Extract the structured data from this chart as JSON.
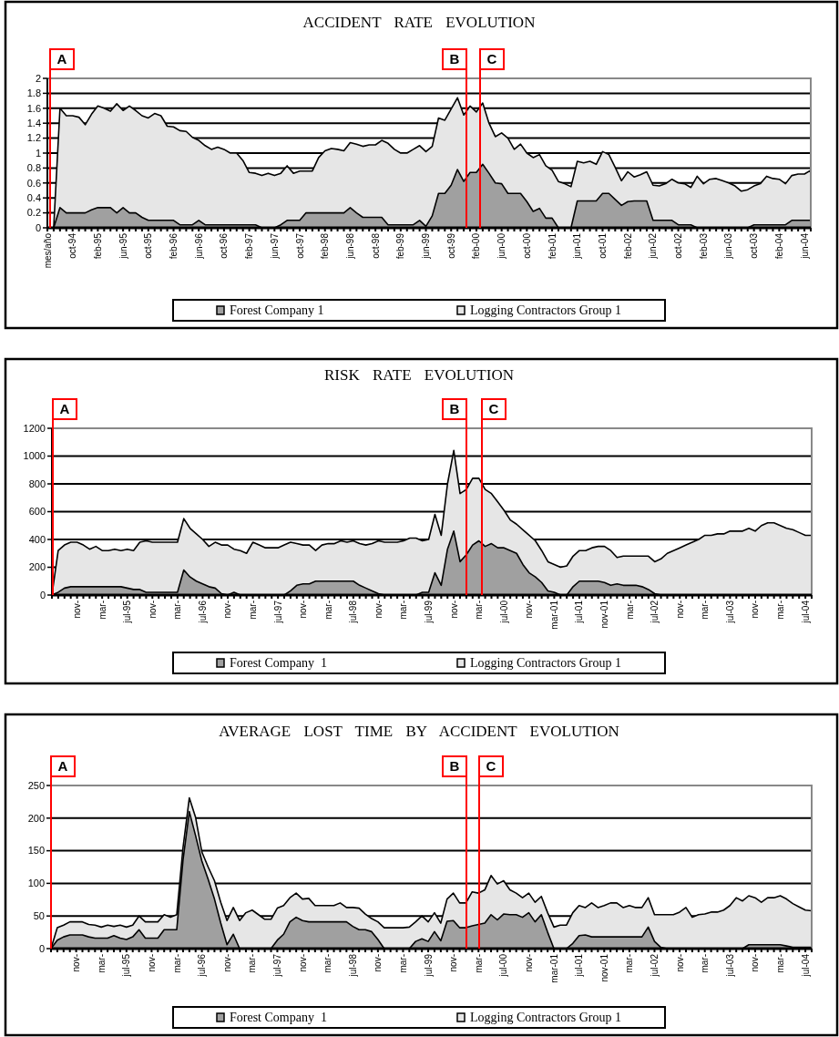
{
  "chart_data": [
    {
      "type": "area",
      "title": "ACCIDENT RATE EVOLUTION",
      "categories": [
        "mes/año",
        null,
        null,
        null,
        "oct-94",
        null,
        null,
        null,
        "feb-95",
        null,
        null,
        null,
        "jun-95",
        null,
        null,
        null,
        "oct-95",
        null,
        null,
        null,
        "feb-96",
        null,
        null,
        null,
        "jun-96",
        null,
        null,
        null,
        "oct-96",
        null,
        null,
        null,
        "feb-97",
        null,
        null,
        null,
        "jun-97",
        null,
        null,
        null,
        "oct-97",
        null,
        null,
        null,
        "feb-98",
        null,
        null,
        null,
        "jun-98",
        null,
        null,
        null,
        "oct-98",
        null,
        null,
        null,
        "feb-99",
        null,
        null,
        null,
        "jun-99",
        null,
        null,
        null,
        "oct-99",
        null,
        null,
        null,
        "feb-00",
        null,
        null,
        null,
        "jun-00",
        null,
        null,
        null,
        "oct-00",
        null,
        null,
        null,
        "feb-01",
        null,
        null,
        null,
        "jun-01",
        null,
        null,
        null,
        "oct-01",
        null,
        null,
        null,
        "feb-02",
        null,
        null,
        null,
        "jun-02",
        null,
        null,
        null,
        "oct-02",
        null,
        null,
        null,
        "feb-03",
        null,
        null,
        null,
        "jun-03",
        null,
        null,
        null,
        "oct-03",
        null,
        null,
        null,
        "feb-04",
        null,
        null,
        null,
        "jun-04",
        null
      ],
      "series": [
        {
          "name": "Forest Company 1",
          "color": "#a0a0a0",
          "values": [
            0,
            0,
            0.27,
            0.2,
            0.2,
            0.2,
            0.2,
            0.24,
            0.27,
            0.27,
            0.27,
            0.2,
            0.27,
            0.2,
            0.2,
            0.14,
            0.1,
            0.1,
            0.1,
            0.1,
            0.1,
            0.04,
            0.04,
            0.04,
            0.1,
            0.04,
            0.04,
            0.04,
            0.04,
            0.04,
            0.04,
            0.04,
            0.04,
            0.04,
            0,
            0,
            0,
            0.04,
            0.1,
            0.1,
            0.1,
            0.2,
            0.2,
            0.2,
            0.2,
            0.2,
            0.2,
            0.2,
            0.27,
            0.2,
            0.14,
            0.14,
            0.14,
            0.14,
            0.04,
            0.04,
            0.04,
            0.04,
            0.04,
            0.1,
            0.02,
            0.16,
            0.46,
            0.46,
            0.57,
            0.78,
            0.62,
            0.74,
            0.74,
            0.85,
            0.73,
            0.6,
            0.59,
            0.46,
            0.46,
            0.46,
            0.35,
            0.22,
            0.26,
            0.13,
            0.13,
            0,
            0,
            0,
            0.36,
            0.36,
            0.36,
            0.36,
            0.46,
            0.46,
            0.38,
            0.3,
            0.35,
            0.36,
            0.36,
            0.36,
            0.1,
            0.1,
            0.1,
            0.1,
            0.04,
            0.04,
            0.04,
            0,
            0,
            0,
            0,
            0,
            0,
            0,
            0,
            0,
            0.04,
            0.04,
            0.04,
            0.04,
            0.04,
            0.04,
            0.1,
            0.1,
            0.1,
            0.1
          ]
        },
        {
          "name": "Logging Contractors Group 1",
          "color": "#e6e6e6",
          "values": [
            0,
            0,
            1.6,
            1.5,
            1.5,
            1.48,
            1.38,
            1.52,
            1.63,
            1.6,
            1.56,
            1.66,
            1.57,
            1.63,
            1.57,
            1.5,
            1.47,
            1.53,
            1.5,
            1.36,
            1.35,
            1.3,
            1.29,
            1.21,
            1.17,
            1.1,
            1.05,
            1.08,
            1.05,
            1.0,
            1.0,
            0.9,
            0.74,
            0.73,
            0.7,
            0.73,
            0.7,
            0.73,
            0.83,
            0.73,
            0.76,
            0.76,
            0.76,
            0.94,
            1.03,
            1.06,
            1.05,
            1.03,
            1.14,
            1.12,
            1.09,
            1.11,
            1.11,
            1.17,
            1.13,
            1.05,
            1.0,
            1.0,
            1.05,
            1.1,
            1.02,
            1.09,
            1.47,
            1.44,
            1.59,
            1.74,
            1.51,
            1.63,
            1.55,
            1.67,
            1.4,
            1.22,
            1.27,
            1.2,
            1.05,
            1.12,
            1.0,
            0.94,
            0.98,
            0.83,
            0.77,
            0.62,
            0.59,
            0.55,
            0.89,
            0.87,
            0.89,
            0.85,
            1.02,
            0.98,
            0.81,
            0.63,
            0.75,
            0.68,
            0.71,
            0.75,
            0.57,
            0.56,
            0.59,
            0.65,
            0.6,
            0.59,
            0.54,
            0.69,
            0.59,
            0.65,
            0.66,
            0.63,
            0.6,
            0.56,
            0.49,
            0.51,
            0.56,
            0.59,
            0.69,
            0.66,
            0.65,
            0.59,
            0.7,
            0.72,
            0.72,
            0.77
          ]
        }
      ],
      "ylim": [
        0,
        2
      ],
      "yticks": [
        0,
        0.2,
        0.4,
        0.6,
        0.8,
        1,
        1.2,
        1.4,
        1.6,
        1.8,
        2
      ],
      "grid": "y",
      "legend": "bottom",
      "annotations": [
        "A",
        "B",
        "C"
      ]
    },
    {
      "type": "area",
      "title": "RISK RATE EVOLUTION",
      "categories": [
        null,
        null,
        null,
        null,
        "nov-",
        null,
        null,
        null,
        "mar-",
        null,
        null,
        null,
        "jul-95",
        null,
        null,
        null,
        "nov-",
        null,
        null,
        null,
        "mar-",
        null,
        null,
        null,
        "jul-96",
        null,
        null,
        null,
        "nov-",
        null,
        null,
        null,
        "mar-",
        null,
        null,
        null,
        "jul-97",
        null,
        null,
        null,
        "nov-",
        null,
        null,
        null,
        "mar-",
        null,
        null,
        null,
        "jul-98",
        null,
        null,
        null,
        "nov-",
        null,
        null,
        null,
        "mar-",
        null,
        null,
        null,
        "jul-99",
        null,
        null,
        null,
        "nov-",
        null,
        null,
        null,
        "mar-",
        null,
        null,
        null,
        "jul-00",
        null,
        null,
        null,
        "nov-",
        null,
        null,
        null,
        "mar-01",
        null,
        null,
        null,
        "jul-01",
        null,
        null,
        null,
        "nov-01",
        null,
        null,
        null,
        "mar-",
        null,
        null,
        null,
        "jul-02",
        null,
        null,
        null,
        "nov-",
        null,
        null,
        null,
        "mar-",
        null,
        null,
        null,
        "jul-03",
        null,
        null,
        null,
        "nov-",
        null,
        null,
        null,
        "mar-",
        null,
        null,
        null,
        "jul-04",
        null
      ],
      "series": [
        {
          "name": "Forest Company  1",
          "color": "#a0a0a0",
          "values": [
            0,
            20,
            50,
            60,
            60,
            60,
            60,
            60,
            60,
            60,
            60,
            60,
            50,
            40,
            40,
            20,
            20,
            20,
            20,
            20,
            20,
            180,
            130,
            100,
            80,
            60,
            50,
            10,
            0,
            20,
            0,
            0,
            0,
            0,
            0,
            0,
            0,
            0,
            30,
            70,
            80,
            80,
            100,
            100,
            100,
            100,
            100,
            100,
            100,
            70,
            50,
            30,
            10,
            0,
            0,
            0,
            0,
            0,
            0,
            20,
            20,
            160,
            70,
            330,
            460,
            240,
            290,
            360,
            390,
            350,
            370,
            340,
            340,
            320,
            300,
            220,
            160,
            130,
            90,
            30,
            20,
            0,
            0,
            60,
            100,
            100,
            100,
            100,
            90,
            70,
            80,
            70,
            70,
            70,
            60,
            40,
            10,
            0,
            0,
            0,
            0,
            0,
            0,
            0,
            0,
            0,
            0,
            0,
            0,
            0,
            0,
            0,
            0,
            0,
            0,
            0,
            0,
            0,
            0,
            0,
            0,
            0
          ]
        },
        {
          "name": "Logging Contractors Group 1",
          "color": "#e6e6e6",
          "values": [
            0,
            320,
            360,
            380,
            380,
            360,
            330,
            350,
            320,
            320,
            330,
            320,
            330,
            320,
            380,
            390,
            380,
            380,
            380,
            380,
            380,
            550,
            480,
            440,
            400,
            350,
            380,
            360,
            360,
            330,
            320,
            300,
            380,
            360,
            340,
            340,
            340,
            360,
            380,
            370,
            360,
            360,
            320,
            360,
            370,
            370,
            390,
            380,
            390,
            370,
            360,
            370,
            390,
            380,
            380,
            380,
            390,
            410,
            410,
            390,
            400,
            580,
            430,
            800,
            1040,
            730,
            760,
            840,
            840,
            760,
            730,
            670,
            610,
            540,
            510,
            470,
            430,
            390,
            320,
            240,
            220,
            200,
            210,
            280,
            320,
            320,
            340,
            350,
            350,
            320,
            270,
            280,
            280,
            280,
            280,
            280,
            240,
            260,
            300,
            320,
            340,
            360,
            380,
            400,
            430,
            430,
            440,
            440,
            460,
            460,
            460,
            480,
            460,
            500,
            520,
            520,
            500,
            480,
            470,
            450,
            430,
            430
          ]
        }
      ],
      "ylim": [
        0,
        1200
      ],
      "yticks": [
        0,
        200,
        400,
        600,
        800,
        1000,
        1200
      ],
      "grid": "y",
      "legend": "bottom",
      "annotations": [
        "A",
        "B",
        "C"
      ]
    },
    {
      "type": "area",
      "title": "AVERAGE LOST TIME BY ACCIDENT EVOLUTION",
      "categories": [
        null,
        null,
        null,
        null,
        "nov-",
        null,
        null,
        null,
        "mar-",
        null,
        null,
        null,
        "jul-95",
        null,
        null,
        null,
        "nov-",
        null,
        null,
        null,
        "mar-",
        null,
        null,
        null,
        "jul-96",
        null,
        null,
        null,
        "nov-",
        null,
        null,
        null,
        "mar-",
        null,
        null,
        null,
        "jul-97",
        null,
        null,
        null,
        "nov-",
        null,
        null,
        null,
        "mar-",
        null,
        null,
        null,
        "jul-98",
        null,
        null,
        null,
        "nov-",
        null,
        null,
        null,
        "mar-",
        null,
        null,
        null,
        "jul-99",
        null,
        null,
        null,
        "nov-",
        null,
        null,
        null,
        "mar-",
        null,
        null,
        null,
        "jul-00",
        null,
        null,
        null,
        "nov-",
        null,
        null,
        null,
        "mar-01",
        null,
        null,
        null,
        "jul-01",
        null,
        null,
        null,
        "nov-01",
        null,
        null,
        null,
        "mar-",
        null,
        null,
        null,
        "jul-02",
        null,
        null,
        null,
        "nov-",
        null,
        null,
        null,
        "mar-",
        null,
        null,
        null,
        "jul-03",
        null,
        null,
        null,
        "nov-",
        null,
        null,
        null,
        "mar-",
        null,
        null,
        null,
        "jul-04",
        null
      ],
      "series": [
        {
          "name": "Forest Company  1",
          "color": "#a0a0a0",
          "values": [
            0,
            13,
            18,
            21,
            21,
            21,
            18,
            16,
            16,
            16,
            20,
            16,
            14,
            18,
            29,
            16,
            16,
            16,
            29,
            29,
            29,
            136,
            210,
            173,
            134,
            106,
            76,
            39,
            6,
            22,
            0,
            0,
            0,
            0,
            0,
            0,
            13,
            22,
            41,
            48,
            43,
            41,
            41,
            41,
            41,
            41,
            41,
            41,
            34,
            29,
            29,
            26,
            14,
            0,
            0,
            0,
            0,
            0,
            11,
            15,
            11,
            26,
            12,
            42,
            43,
            32,
            32,
            35,
            37,
            39,
            52,
            44,
            53,
            52,
            52,
            48,
            55,
            41,
            52,
            25,
            0,
            0,
            0,
            8,
            20,
            21,
            18,
            18,
            18,
            18,
            18,
            18,
            18,
            18,
            18,
            33,
            11,
            2,
            0,
            0,
            0,
            0,
            0,
            0,
            0,
            0,
            0,
            0,
            0,
            0,
            0,
            6,
            6,
            6,
            6,
            6,
            6,
            4,
            2,
            2,
            2,
            2
          ]
        },
        {
          "name": "Logging Contractors Group 1",
          "color": "#e6e6e6",
          "values": [
            0,
            32,
            36,
            41,
            41,
            41,
            37,
            36,
            33,
            36,
            34,
            36,
            33,
            36,
            50,
            41,
            41,
            41,
            52,
            48,
            52,
            155,
            231,
            201,
            148,
            125,
            104,
            71,
            43,
            63,
            43,
            55,
            59,
            52,
            45,
            45,
            62,
            66,
            78,
            85,
            76,
            77,
            66,
            66,
            66,
            66,
            70,
            63,
            63,
            62,
            53,
            46,
            41,
            32,
            32,
            32,
            32,
            33,
            41,
            50,
            41,
            55,
            39,
            76,
            85,
            70,
            70,
            87,
            85,
            90,
            112,
            99,
            104,
            90,
            85,
            78,
            85,
            71,
            80,
            55,
            33,
            36,
            36,
            55,
            66,
            63,
            70,
            63,
            66,
            70,
            70,
            63,
            66,
            63,
            63,
            78,
            52,
            52,
            52,
            52,
            56,
            63,
            48,
            52,
            53,
            56,
            56,
            59,
            66,
            78,
            73,
            81,
            78,
            71,
            78,
            78,
            81,
            76,
            69,
            64,
            59,
            58
          ]
        }
      ],
      "ylim": [
        0,
        250
      ],
      "yticks": [
        0,
        50,
        100,
        150,
        200,
        250
      ],
      "grid": "y",
      "legend": "bottom",
      "annotations": [
        "A",
        "B",
        "C"
      ]
    }
  ]
}
